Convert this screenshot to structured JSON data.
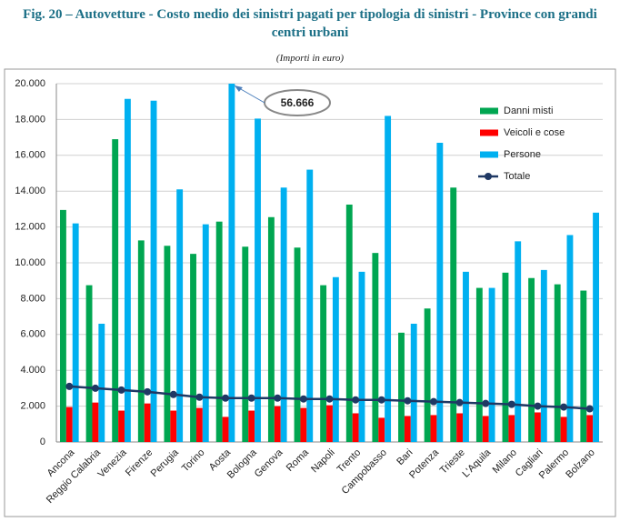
{
  "chart_data": {
    "type": "bar",
    "title": "Fig. 20 – Autovetture - Costo medio dei sinistri pagati per tipologia di sinistri - Province con grandi centri urbani",
    "subtitle": "(Importi in euro)",
    "categories": [
      "Ancona",
      "Reggio Calabria",
      "Venezia",
      "Firenze",
      "Perugia",
      "Torino",
      "Aosta",
      "Bologna",
      "Genova",
      "Roma",
      "Napoli",
      "Trento",
      "Campobasso",
      "Bari",
      "Potenza",
      "Trieste",
      "L'Aquila",
      "Milano",
      "Cagliari",
      "Palermo",
      "Bolzano"
    ],
    "series": [
      {
        "name": "Danni misti",
        "color": "#00a651",
        "values": [
          12950,
          8750,
          16900,
          11250,
          10950,
          10500,
          12300,
          10900,
          12550,
          10850,
          8750,
          13250,
          10550,
          6100,
          7450,
          14200,
          8600,
          9450,
          9150,
          8800,
          8450
        ]
      },
      {
        "name": "Veicoli e cose",
        "color": "#ff0000",
        "values": [
          1950,
          2200,
          1750,
          2150,
          1750,
          1900,
          1400,
          1750,
          2000,
          1900,
          2050,
          1600,
          1350,
          1450,
          1500,
          1600,
          1450,
          1500,
          1650,
          1400,
          1500
        ]
      },
      {
        "name": "Persone",
        "color": "#00b0f0",
        "values": [
          12200,
          6600,
          19150,
          19050,
          14100,
          12150,
          56666,
          18050,
          14200,
          15200,
          9200,
          9500,
          18200,
          6600,
          16700,
          9500,
          8600,
          11200,
          9600,
          11550,
          12800
        ],
        "value_labels": [
          null,
          null,
          null,
          null,
          null,
          null,
          "56.666",
          null,
          null,
          null,
          null,
          null,
          null,
          null,
          null,
          null,
          null,
          null,
          null,
          null,
          null
        ]
      },
      {
        "name": "Totale",
        "type": "line",
        "color": "#1f3864",
        "values": [
          3100,
          3000,
          2900,
          2800,
          2650,
          2500,
          2450,
          2450,
          2450,
          2400,
          2400,
          2350,
          2350,
          2300,
          2250,
          2200,
          2150,
          2100,
          2000,
          1950,
          1850
        ]
      }
    ],
    "ylim": [
      0,
      20000
    ],
    "yticks": [
      0,
      {
        "value": 2000,
        "label": "2.000"
      },
      {
        "value": 4000,
        "label": "4.000"
      },
      {
        "value": 6000,
        "label": "6.000"
      },
      {
        "value": 8000,
        "label": "8.000"
      },
      {
        "value": 10000,
        "label": "10.000"
      },
      {
        "value": 12000,
        "label": "12.000"
      },
      {
        "value": 14000,
        "label": "14.000"
      },
      {
        "value": 16000,
        "label": "16.000"
      },
      {
        "value": 18000,
        "label": "18.000"
      },
      {
        "value": 20000,
        "label": "20.000"
      }
    ],
    "grid": true,
    "legend": "top-right"
  }
}
